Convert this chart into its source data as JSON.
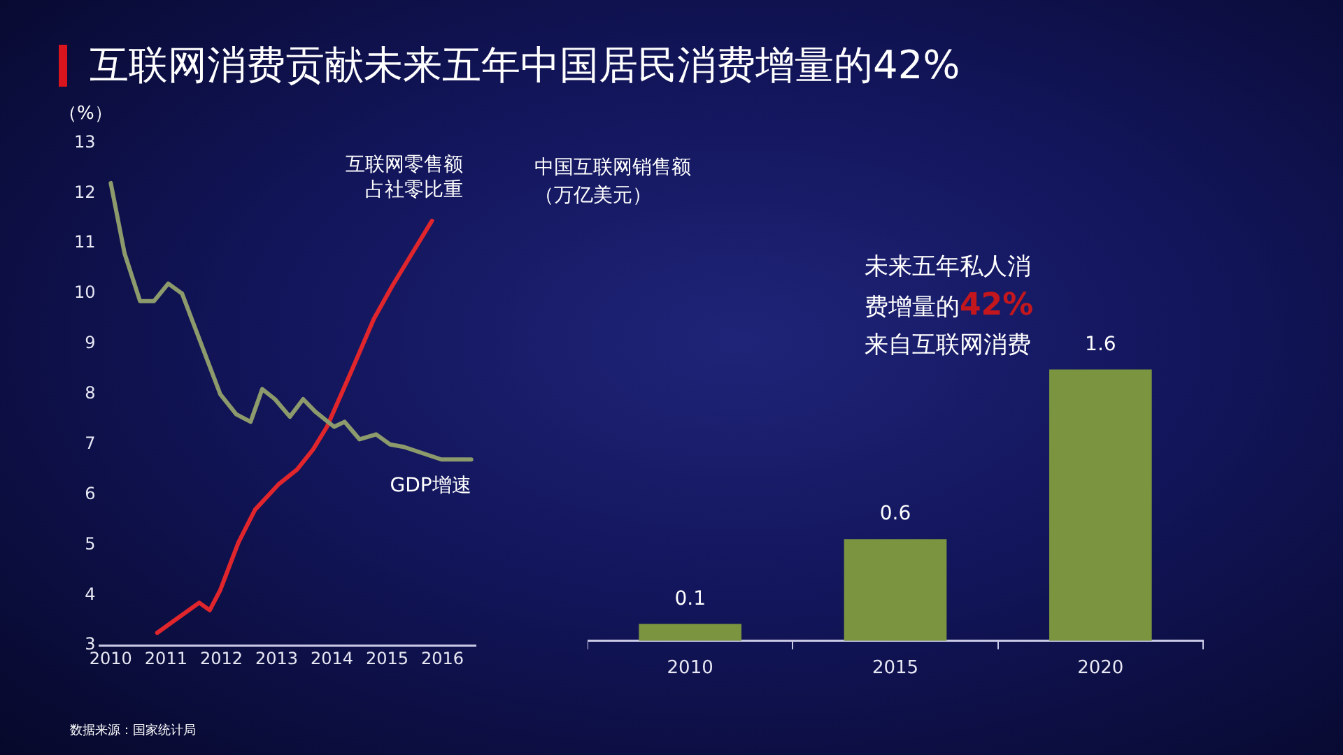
{
  "chart_data": [
    {
      "type": "line",
      "title": "互联网消费贡献未来五年中国居民消费增量的42%",
      "ylabel": "（%）",
      "xlim": [
        2009.8,
        2016.6
      ],
      "xticks": [
        2010,
        2011,
        2012,
        2013,
        2014,
        2015,
        2016
      ],
      "ylim": [
        3,
        13
      ],
      "yticks": [
        3,
        4,
        5,
        6,
        7,
        8,
        9,
        10,
        11,
        12,
        13
      ],
      "legend": false,
      "grid": false,
      "annotations": [
        "数据来源：国家统计局"
      ],
      "series": [
        {
          "name": "GDP增速",
          "color": "#8c9a6c",
          "x": [
            2010.0,
            2010.25,
            2010.53,
            2010.78,
            2011.04,
            2011.29,
            2011.98,
            2012.27,
            2012.53,
            2012.74,
            2012.97,
            2013.24,
            2013.48,
            2013.7,
            2014.04,
            2014.23,
            2014.5,
            2014.8,
            2015.05,
            2015.3,
            2015.98,
            2016.52
          ],
          "values": [
            12.2,
            10.8,
            9.85,
            9.85,
            10.2,
            10.0,
            8.0,
            7.6,
            7.45,
            8.1,
            7.9,
            7.55,
            7.9,
            7.65,
            7.35,
            7.45,
            7.1,
            7.2,
            7.0,
            6.95,
            6.7,
            6.7
          ]
        },
        {
          "name": "互联网零售额占社零比重",
          "color": "#e0262c",
          "x": [
            2010.84,
            2011.6,
            2011.79,
            2011.98,
            2012.31,
            2012.61,
            2013.03,
            2013.37,
            2013.66,
            2013.91,
            2014.33,
            2014.76,
            2015.09,
            2015.81
          ],
          "values": [
            3.25,
            3.85,
            3.7,
            4.1,
            5.05,
            5.7,
            6.2,
            6.5,
            6.9,
            7.35,
            8.4,
            9.5,
            10.15,
            11.45
          ]
        }
      ]
    },
    {
      "type": "bar",
      "title": "中国互联网销售额（万亿美元）",
      "categories": [
        "2010",
        "2015",
        "2020"
      ],
      "values": [
        0.1,
        0.6,
        1.6
      ],
      "color": "#7b9440",
      "data_labels": true,
      "annotations": [
        "未来五年私人消费增量的42%来自互联网消费"
      ]
    }
  ]
}
